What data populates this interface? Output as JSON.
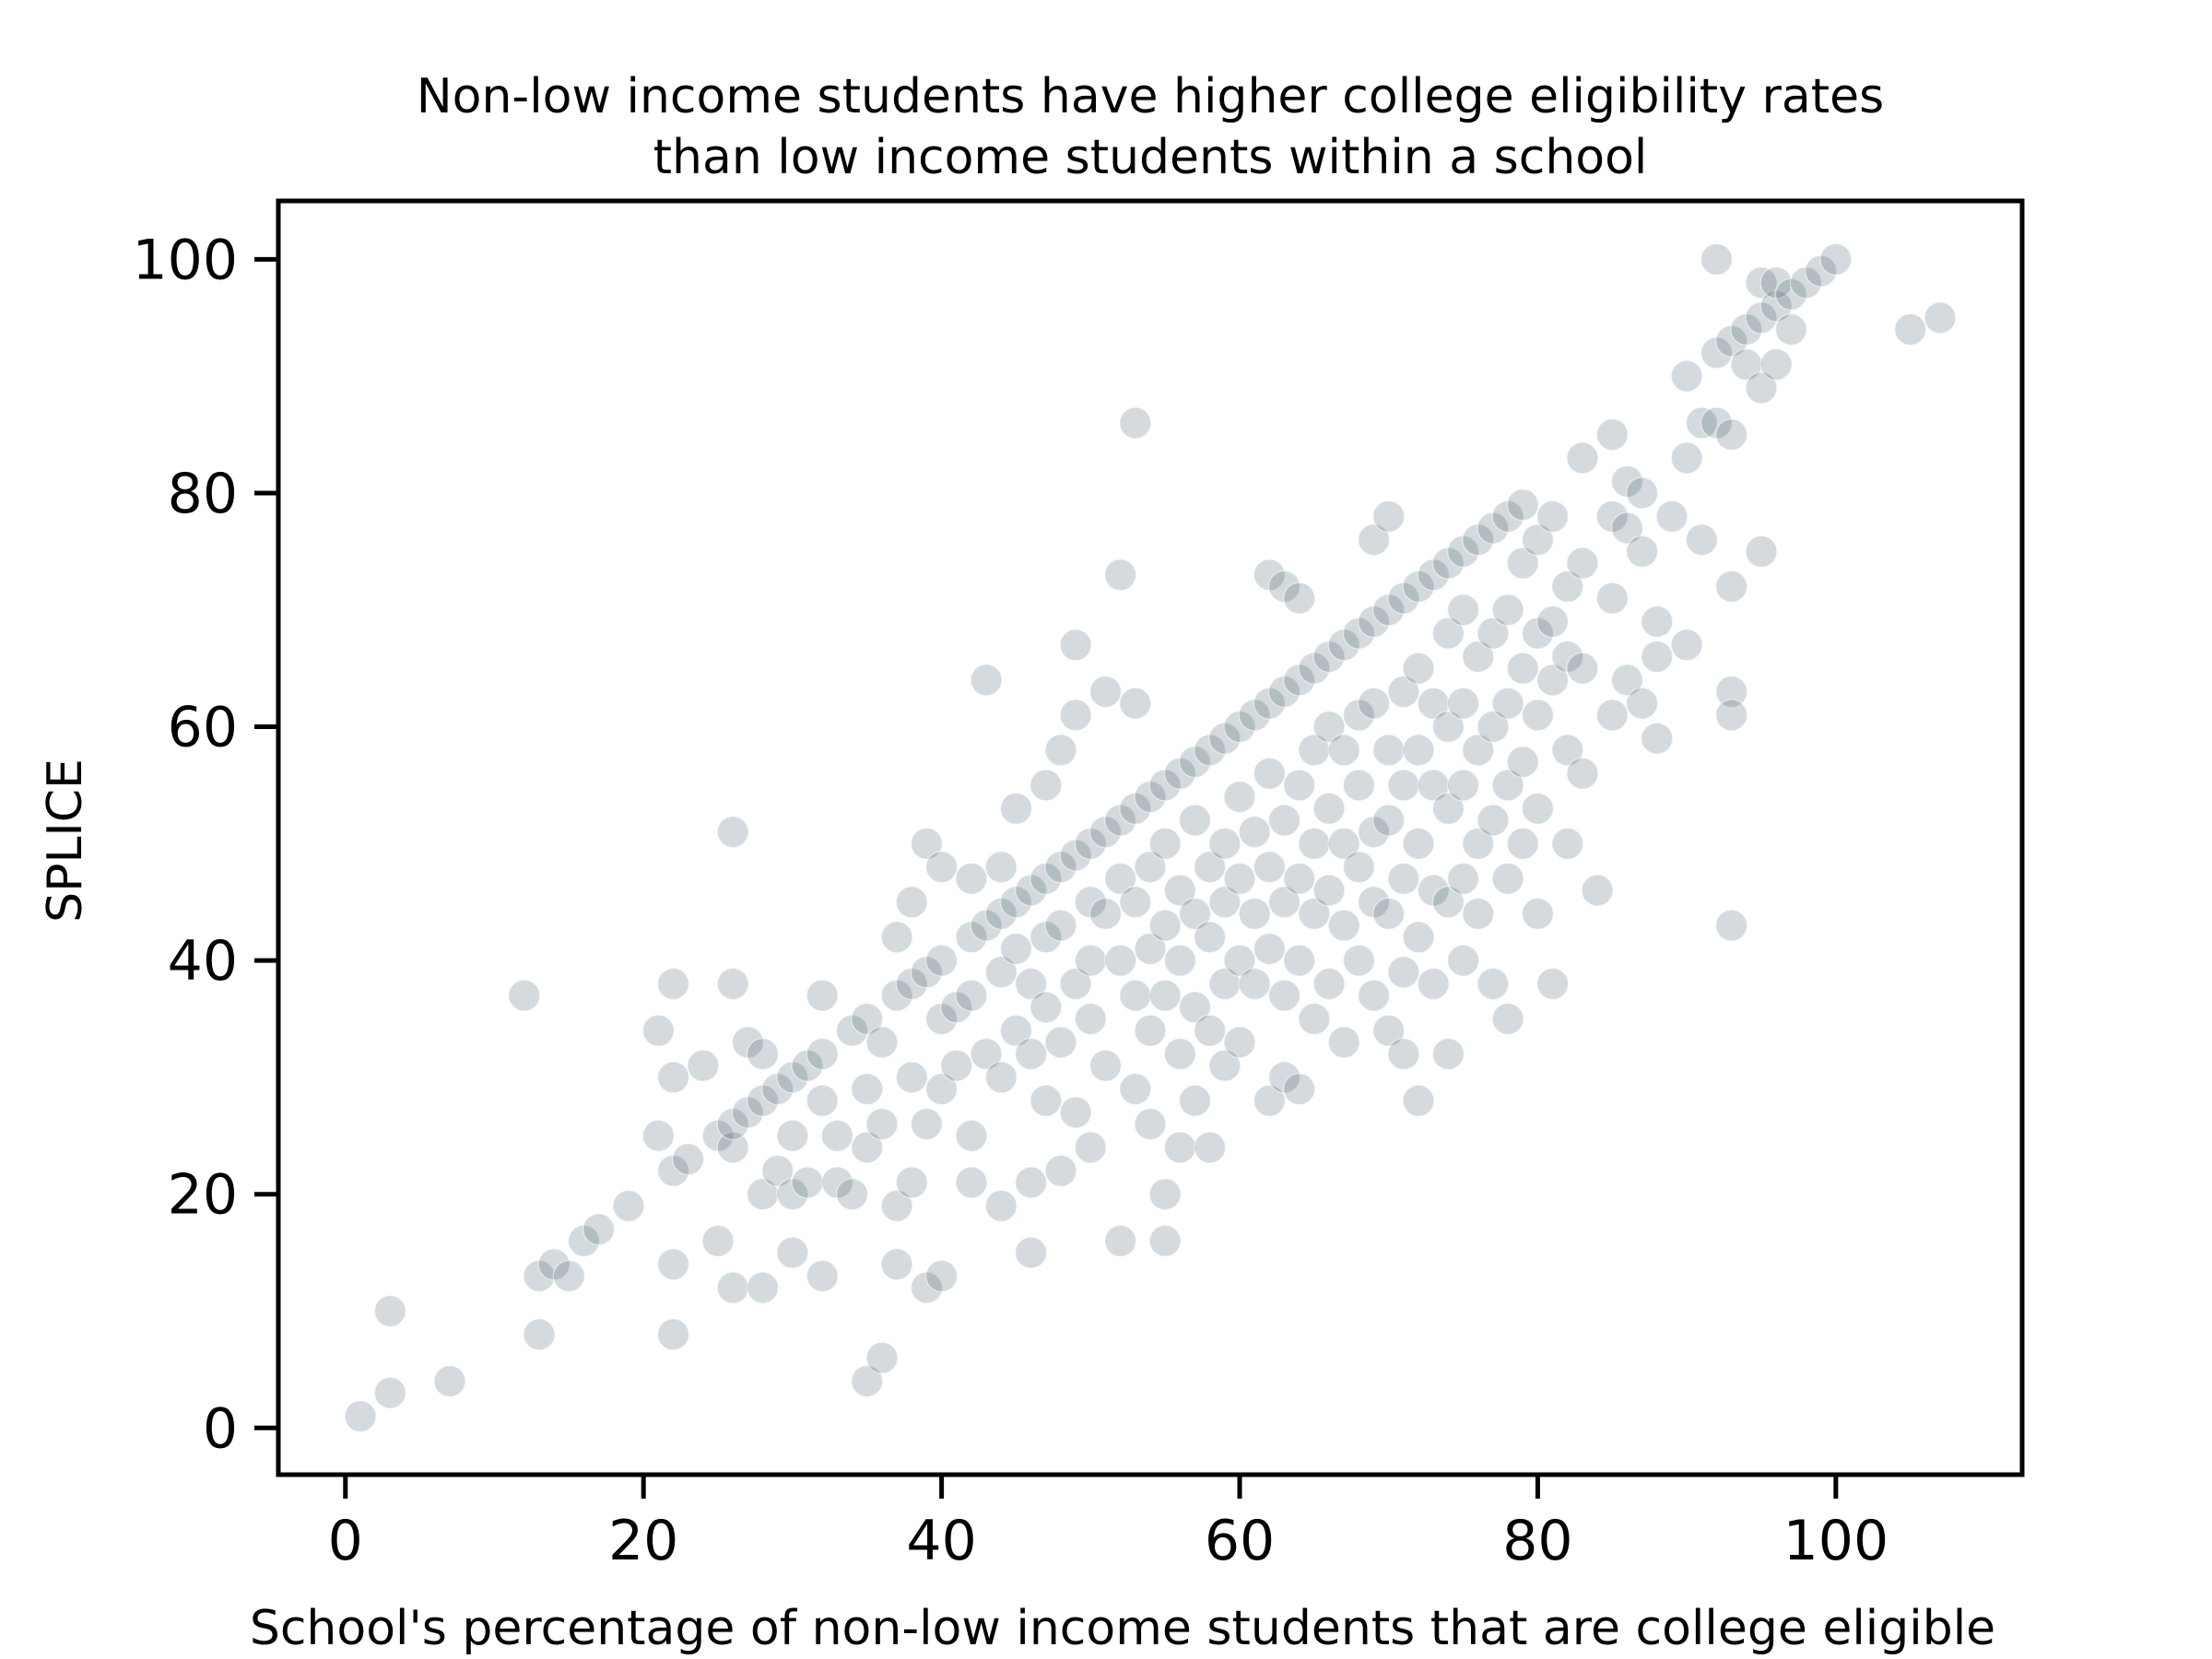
{
  "chart_data": {
    "type": "scatter",
    "title": [
      "Non-low income students have higher college eligibility rates",
      "than low income students within a school"
    ],
    "xlabel": "School's percentage of non-low income students that are college eligible",
    "ylabel": "SPLICE",
    "xlim": [
      -4.5,
      112.5
    ],
    "ylim": [
      -4,
      105
    ],
    "xticks": [
      0,
      20,
      40,
      60,
      80,
      100
    ],
    "yticks": [
      0,
      20,
      40,
      60,
      80,
      100
    ],
    "grid": false,
    "legend": "none",
    "point_color": "#3d5866",
    "point_opacity": 0.22,
    "points": [
      [
        1,
        1
      ],
      [
        3,
        3
      ],
      [
        3,
        10
      ],
      [
        7,
        4
      ],
      [
        12,
        37
      ],
      [
        13,
        13
      ],
      [
        13,
        8
      ],
      [
        14,
        14
      ],
      [
        15,
        13
      ],
      [
        16,
        16
      ],
      [
        17,
        17
      ],
      [
        19,
        19
      ],
      [
        21,
        25
      ],
      [
        21,
        34
      ],
      [
        22,
        30
      ],
      [
        22,
        38
      ],
      [
        22,
        14
      ],
      [
        22,
        8
      ],
      [
        22,
        22
      ],
      [
        23,
        23
      ],
      [
        24,
        31
      ],
      [
        25,
        25
      ],
      [
        25,
        16
      ],
      [
        26,
        38
      ],
      [
        26,
        24
      ],
      [
        26,
        12
      ],
      [
        26,
        26
      ],
      [
        26,
        51
      ],
      [
        27,
        33
      ],
      [
        27,
        27
      ],
      [
        28,
        32
      ],
      [
        28,
        20
      ],
      [
        28,
        12
      ],
      [
        28,
        28
      ],
      [
        29,
        29
      ],
      [
        29,
        22
      ],
      [
        30,
        30
      ],
      [
        30,
        25
      ],
      [
        30,
        15
      ],
      [
        30,
        20
      ],
      [
        31,
        31
      ],
      [
        31,
        21
      ],
      [
        32,
        32
      ],
      [
        32,
        37
      ],
      [
        32,
        28
      ],
      [
        32,
        13
      ],
      [
        33,
        25
      ],
      [
        33,
        21
      ],
      [
        34,
        34
      ],
      [
        34,
        20
      ],
      [
        35,
        35
      ],
      [
        35,
        4
      ],
      [
        35,
        29
      ],
      [
        35,
        24
      ],
      [
        36,
        6
      ],
      [
        36,
        33
      ],
      [
        36,
        26
      ],
      [
        37,
        37
      ],
      [
        37,
        42
      ],
      [
        37,
        19
      ],
      [
        37,
        14
      ],
      [
        38,
        38
      ],
      [
        38,
        45
      ],
      [
        38,
        30
      ],
      [
        38,
        21
      ],
      [
        39,
        39
      ],
      [
        39,
        50
      ],
      [
        39,
        26
      ],
      [
        39,
        12
      ],
      [
        40,
        40
      ],
      [
        40,
        48
      ],
      [
        40,
        35
      ],
      [
        40,
        29
      ],
      [
        40,
        13
      ],
      [
        41,
        36
      ],
      [
        41,
        31
      ],
      [
        42,
        42
      ],
      [
        42,
        47
      ],
      [
        42,
        37
      ],
      [
        42,
        25
      ],
      [
        42,
        21
      ],
      [
        43,
        43
      ],
      [
        43,
        32
      ],
      [
        43,
        64
      ],
      [
        44,
        44
      ],
      [
        44,
        48
      ],
      [
        44,
        39
      ],
      [
        44,
        30
      ],
      [
        44,
        19
      ],
      [
        45,
        45
      ],
      [
        45,
        41
      ],
      [
        45,
        34
      ],
      [
        45,
        53
      ],
      [
        46,
        46
      ],
      [
        46,
        38
      ],
      [
        46,
        32
      ],
      [
        46,
        21
      ],
      [
        46,
        15
      ],
      [
        47,
        47
      ],
      [
        47,
        42
      ],
      [
        47,
        36
      ],
      [
        47,
        28
      ],
      [
        47,
        55
      ],
      [
        48,
        48
      ],
      [
        48,
        58
      ],
      [
        48,
        43
      ],
      [
        48,
        33
      ],
      [
        48,
        22
      ],
      [
        49,
        49
      ],
      [
        49,
        61
      ],
      [
        49,
        67
      ],
      [
        49,
        38
      ],
      [
        49,
        27
      ],
      [
        50,
        50
      ],
      [
        50,
        45
      ],
      [
        50,
        40
      ],
      [
        50,
        35
      ],
      [
        50,
        24
      ],
      [
        51,
        51
      ],
      [
        51,
        63
      ],
      [
        51,
        44
      ],
      [
        51,
        31
      ],
      [
        52,
        52
      ],
      [
        52,
        73
      ],
      [
        52,
        47
      ],
      [
        52,
        40
      ],
      [
        52,
        16
      ],
      [
        53,
        53
      ],
      [
        53,
        86
      ],
      [
        53,
        62
      ],
      [
        53,
        45
      ],
      [
        53,
        37
      ],
      [
        53,
        29
      ],
      [
        54,
        54
      ],
      [
        54,
        48
      ],
      [
        54,
        41
      ],
      [
        54,
        34
      ],
      [
        54,
        26
      ],
      [
        55,
        55
      ],
      [
        55,
        50
      ],
      [
        55,
        43
      ],
      [
        55,
        37
      ],
      [
        55,
        20
      ],
      [
        55,
        16
      ],
      [
        56,
        56
      ],
      [
        56,
        46
      ],
      [
        56,
        40
      ],
      [
        56,
        32
      ],
      [
        56,
        24
      ],
      [
        57,
        57
      ],
      [
        57,
        52
      ],
      [
        57,
        44
      ],
      [
        57,
        36
      ],
      [
        57,
        28
      ],
      [
        58,
        58
      ],
      [
        58,
        48
      ],
      [
        58,
        42
      ],
      [
        58,
        34
      ],
      [
        58,
        24
      ],
      [
        59,
        59
      ],
      [
        59,
        50
      ],
      [
        59,
        45
      ],
      [
        59,
        38
      ],
      [
        59,
        31
      ],
      [
        60,
        60
      ],
      [
        60,
        54
      ],
      [
        60,
        47
      ],
      [
        60,
        40
      ],
      [
        60,
        33
      ],
      [
        61,
        61
      ],
      [
        61,
        51
      ],
      [
        61,
        44
      ],
      [
        61,
        38
      ],
      [
        62,
        62
      ],
      [
        62,
        73
      ],
      [
        62,
        56
      ],
      [
        62,
        48
      ],
      [
        62,
        41
      ],
      [
        62,
        28
      ],
      [
        63,
        63
      ],
      [
        63,
        72
      ],
      [
        63,
        52
      ],
      [
        63,
        45
      ],
      [
        63,
        37
      ],
      [
        63,
        30
      ],
      [
        64,
        64
      ],
      [
        64,
        71
      ],
      [
        64,
        55
      ],
      [
        64,
        47
      ],
      [
        64,
        40
      ],
      [
        64,
        29
      ],
      [
        65,
        65
      ],
      [
        65,
        58
      ],
      [
        65,
        50
      ],
      [
        65,
        44
      ],
      [
        65,
        35
      ],
      [
        66,
        66
      ],
      [
        66,
        60
      ],
      [
        66,
        53
      ],
      [
        66,
        46
      ],
      [
        66,
        38
      ],
      [
        67,
        67
      ],
      [
        67,
        58
      ],
      [
        67,
        50
      ],
      [
        67,
        43
      ],
      [
        67,
        33
      ],
      [
        68,
        68
      ],
      [
        68,
        61
      ],
      [
        68,
        55
      ],
      [
        68,
        48
      ],
      [
        68,
        40
      ],
      [
        69,
        69
      ],
      [
        69,
        76
      ],
      [
        69,
        62
      ],
      [
        69,
        51
      ],
      [
        69,
        45
      ],
      [
        69,
        37
      ],
      [
        70,
        70
      ],
      [
        70,
        78
      ],
      [
        70,
        58
      ],
      [
        70,
        52
      ],
      [
        70,
        44
      ],
      [
        70,
        34
      ],
      [
        71,
        71
      ],
      [
        71,
        63
      ],
      [
        71,
        55
      ],
      [
        71,
        47
      ],
      [
        71,
        39
      ],
      [
        71,
        32
      ],
      [
        72,
        72
      ],
      [
        72,
        65
      ],
      [
        72,
        58
      ],
      [
        72,
        50
      ],
      [
        72,
        42
      ],
      [
        72,
        28
      ],
      [
        73,
        73
      ],
      [
        73,
        62
      ],
      [
        73,
        55
      ],
      [
        73,
        46
      ],
      [
        73,
        38
      ],
      [
        74,
        74
      ],
      [
        74,
        68
      ],
      [
        74,
        60
      ],
      [
        74,
        53
      ],
      [
        74,
        45
      ],
      [
        74,
        32
      ],
      [
        75,
        75
      ],
      [
        75,
        70
      ],
      [
        75,
        62
      ],
      [
        75,
        55
      ],
      [
        75,
        47
      ],
      [
        75,
        40
      ],
      [
        76,
        76
      ],
      [
        76,
        66
      ],
      [
        76,
        58
      ],
      [
        76,
        50
      ],
      [
        76,
        44
      ],
      [
        77,
        77
      ],
      [
        77,
        68
      ],
      [
        77,
        60
      ],
      [
        77,
        52
      ],
      [
        77,
        38
      ],
      [
        78,
        78
      ],
      [
        78,
        70
      ],
      [
        78,
        62
      ],
      [
        78,
        55
      ],
      [
        78,
        47
      ],
      [
        78,
        35
      ],
      [
        79,
        79
      ],
      [
        79,
        74
      ],
      [
        79,
        65
      ],
      [
        79,
        57
      ],
      [
        79,
        50
      ],
      [
        80,
        76
      ],
      [
        80,
        68
      ],
      [
        80,
        61
      ],
      [
        80,
        53
      ],
      [
        80,
        44
      ],
      [
        81,
        78
      ],
      [
        81,
        69
      ],
      [
        81,
        64
      ],
      [
        81,
        38
      ],
      [
        82,
        72
      ],
      [
        82,
        66
      ],
      [
        82,
        58
      ],
      [
        82,
        50
      ],
      [
        83,
        83
      ],
      [
        83,
        74
      ],
      [
        83,
        65
      ],
      [
        83,
        56
      ],
      [
        84,
        46
      ],
      [
        85,
        85
      ],
      [
        85,
        78
      ],
      [
        85,
        71
      ],
      [
        85,
        61
      ],
      [
        86,
        81
      ],
      [
        86,
        77
      ],
      [
        86,
        64
      ],
      [
        87,
        80
      ],
      [
        87,
        75
      ],
      [
        87,
        62
      ],
      [
        88,
        69
      ],
      [
        88,
        66
      ],
      [
        88,
        59
      ],
      [
        89,
        78
      ],
      [
        90,
        83
      ],
      [
        90,
        67
      ],
      [
        90,
        90
      ],
      [
        91,
        86
      ],
      [
        91,
        76
      ],
      [
        92,
        92
      ],
      [
        92,
        100
      ],
      [
        92,
        86
      ],
      [
        93,
        93
      ],
      [
        93,
        85
      ],
      [
        93,
        72
      ],
      [
        93,
        63
      ],
      [
        93,
        61
      ],
      [
        93,
        43
      ],
      [
        94,
        94
      ],
      [
        94,
        91
      ],
      [
        95,
        95
      ],
      [
        95,
        98
      ],
      [
        95,
        89
      ],
      [
        95,
        75
      ],
      [
        96,
        96
      ],
      [
        96,
        98
      ],
      [
        96,
        91
      ],
      [
        97,
        97
      ],
      [
        97,
        94
      ],
      [
        98,
        98
      ],
      [
        99,
        99
      ],
      [
        100,
        100
      ],
      [
        105,
        94
      ],
      [
        107,
        95
      ]
    ]
  }
}
